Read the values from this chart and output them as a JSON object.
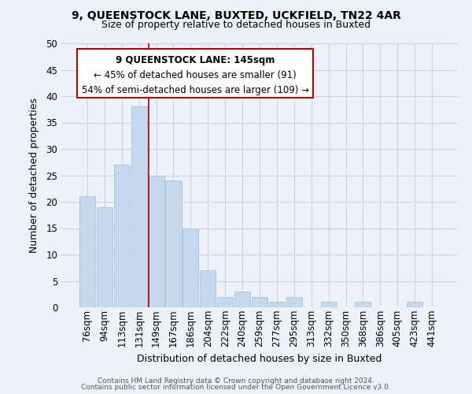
{
  "title1": "9, QUEENSTOCK LANE, BUXTED, UCKFIELD, TN22 4AR",
  "title2": "Size of property relative to detached houses in Buxted",
  "xlabel": "Distribution of detached houses by size in Buxted",
  "ylabel": "Number of detached properties",
  "categories": [
    "76sqm",
    "94sqm",
    "113sqm",
    "131sqm",
    "149sqm",
    "167sqm",
    "186sqm",
    "204sqm",
    "222sqm",
    "240sqm",
    "259sqm",
    "277sqm",
    "295sqm",
    "313sqm",
    "332sqm",
    "350sqm",
    "368sqm",
    "386sqm",
    "405sqm",
    "423sqm",
    "441sqm"
  ],
  "values": [
    21,
    19,
    27,
    38,
    25,
    24,
    15,
    7,
    2,
    3,
    2,
    1,
    2,
    0,
    1,
    0,
    1,
    0,
    0,
    1,
    0
  ],
  "bar_color": "#c5d8ed",
  "bar_edge_color": "#a8c4de",
  "vline_x_index": 4,
  "vline_color": "#aa0000",
  "box_text_line1": "9 QUEENSTOCK LANE: 145sqm",
  "box_text_line2": "← 45% of detached houses are smaller (91)",
  "box_text_line3": "54% of semi-detached houses are larger (109) →",
  "box_color": "#ffffff",
  "box_edge_color": "#aa0000",
  "ylim": [
    0,
    50
  ],
  "yticks": [
    0,
    5,
    10,
    15,
    20,
    25,
    30,
    35,
    40,
    45,
    50
  ],
  "footer1": "Contains HM Land Registry data © Crown copyright and database right 2024.",
  "footer2": "Contains public sector information licensed under the Open Government Licence v3.0.",
  "grid_color": "#c8d4e8",
  "bg_color": "#eef2f8"
}
